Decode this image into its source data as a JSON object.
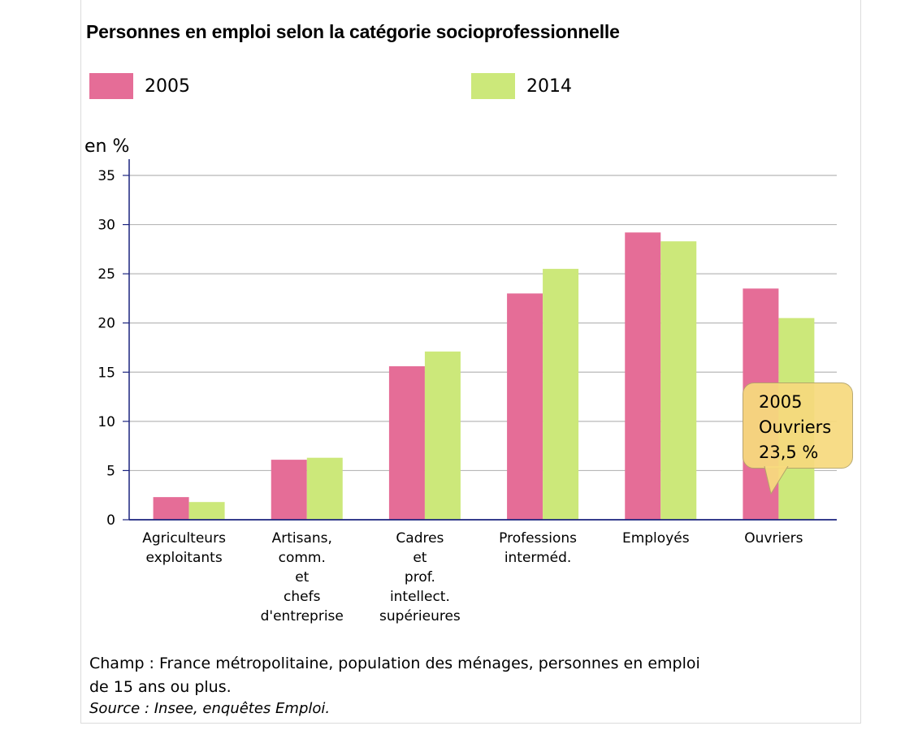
{
  "title": "Personnes en emploi selon la catégorie socioprofessionnelle",
  "unit_label": "en %",
  "legend": [
    {
      "label": "2005",
      "color": "#e56d97"
    },
    {
      "label": "2014",
      "color": "#cce87a"
    }
  ],
  "tooltip": {
    "line1": "2005",
    "line2": "Ouvriers",
    "line3": "23,5 %"
  },
  "notes": {
    "champ_line1": "Champ : France métropolitaine, population des ménages, personnes en emploi",
    "champ_line2": "de 15 ans ou plus.",
    "source": "Source : Insee, enquêtes Emploi."
  },
  "chart_data": {
    "type": "bar",
    "title": "Personnes en emploi selon la catégorie socioprofessionnelle",
    "ylabel": "en %",
    "xlabel": "",
    "ylim": [
      0,
      35
    ],
    "yticks": [
      "0",
      "5",
      "10",
      "15",
      "20",
      "25",
      "30",
      "35"
    ],
    "grid": true,
    "legend_position": "top",
    "categories": [
      [
        "Agriculteurs",
        "exploitants"
      ],
      [
        "Artisans,",
        "comm.",
        "et",
        "chefs",
        "d'entreprise"
      ],
      [
        "Cadres",
        "et",
        "prof.",
        "intellect.",
        "supérieures"
      ],
      [
        "Professions",
        "interméd."
      ],
      [
        "Employés"
      ],
      [
        "Ouvriers"
      ]
    ],
    "series": [
      {
        "name": "2005",
        "color": "#e56d97",
        "values": [
          2.3,
          6.1,
          15.6,
          23.0,
          29.2,
          23.5
        ]
      },
      {
        "name": "2014",
        "color": "#cce87a",
        "values": [
          1.8,
          6.3,
          17.1,
          25.5,
          28.3,
          20.5
        ]
      }
    ]
  }
}
